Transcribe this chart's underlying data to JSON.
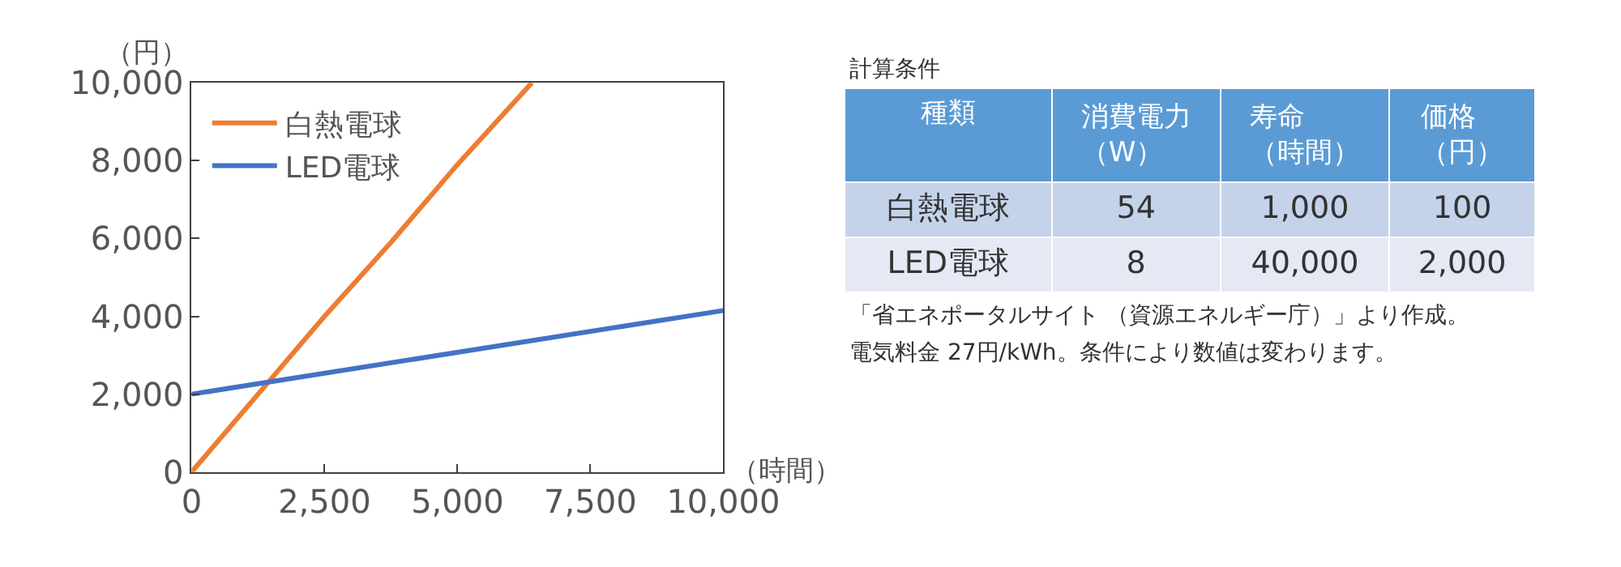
{
  "chart_data": [
    {
      "type": "line",
      "xlabel": "（時間）",
      "ylabel": "（円）",
      "xlim": [
        0,
        10000
      ],
      "xticks": [
        {
          "value": 0,
          "label": "0"
        },
        {
          "value": 2500,
          "label": "2,500"
        },
        {
          "value": 5000,
          "label": "5,000"
        },
        {
          "value": 7500,
          "label": "7,500"
        },
        {
          "value": 10000,
          "label": "10,000"
        }
      ],
      "ylim": [
        0,
        10000
      ],
      "yticks": [
        {
          "value": 0,
          "label": "0"
        },
        {
          "value": 2000,
          "label": "2,000"
        },
        {
          "value": 4000,
          "label": "4,000"
        },
        {
          "value": 6000,
          "label": "6,000"
        },
        {
          "value": 8000,
          "label": "8,000"
        },
        {
          "value": 10000,
          "label": "10,000"
        }
      ],
      "legend": "top left",
      "marker": "none",
      "line_style": "solid",
      "series": [
        {
          "name": "白熱電球",
          "color": "#ed7d31",
          "x": [
            0,
            1250,
            2500,
            3750,
            5000,
            6400
          ],
          "values": [
            0,
            2000,
            4000,
            5900,
            7900,
            10000
          ]
        },
        {
          "name": "LED電球",
          "color": "#4472c4",
          "x": [
            0,
            10000
          ],
          "values": [
            2000,
            4150
          ]
        }
      ]
    },
    {
      "type": "other",
      "title": "計算条件",
      "annotations": [
        "種類",
        "消費電力（W）",
        "寿命（時間）",
        "価格（円）",
        "白熱電球",
        "54",
        "1,000",
        "100",
        "LED電球",
        "8",
        "40,000",
        "2,000",
        "「省エネポータルサイト （資源エネルギー庁）」より作成。",
        "電気料金 27円/kWh。条件により数値は変わります。"
      ]
    }
  ]
}
